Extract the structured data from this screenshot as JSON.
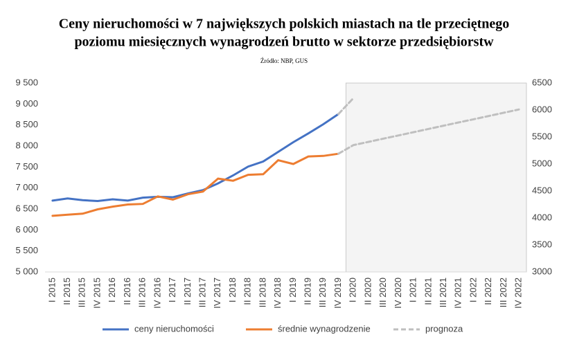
{
  "chart_data": {
    "type": "line",
    "title": [
      "Ceny nieruchomości w 7 największych polskich miastach na tle przeciętnego",
      "poziomu miesięcznych wynagrodzeń brutto w sektorze przedsiębiorstw"
    ],
    "subtitle": "Źródło: NBP, GUS",
    "categories": [
      "I 2015",
      "II 2015",
      "III 2015",
      "IV 2015",
      "I 2016",
      "II 2016",
      "III 2016",
      "IV 2016",
      "I 2017",
      "II 2017",
      "III 2017",
      "IV 2017",
      "I 2018",
      "II 2018",
      "III 2018",
      "IV 2018",
      "I 2019",
      "II 2019",
      "III 2019",
      "IV 2019",
      "I 2020",
      "II 2020",
      "III 2020",
      "IV 2020",
      "I 2021",
      "II 2021",
      "III 2021",
      "IV 2021",
      "I 2022",
      "II 2022",
      "III 2022",
      "IV 2022"
    ],
    "series": [
      {
        "name": "ceny nieruchomości",
        "color": "#4472c4",
        "axis": "y",
        "values": [
          6700,
          6750,
          6710,
          6690,
          6730,
          6700,
          6770,
          6790,
          6780,
          6870,
          6950,
          7110,
          7300,
          7510,
          7630,
          7860,
          8090,
          8300,
          8520,
          8760,
          null,
          null,
          null,
          null,
          null,
          null,
          null,
          null,
          null,
          null,
          null,
          null
        ]
      },
      {
        "name": "średnie wynagrodzenie",
        "color": "#ed7d31",
        "axis": "y2",
        "values": [
          4040,
          4060,
          4080,
          4160,
          4210,
          4250,
          4260,
          4400,
          4340,
          4440,
          4490,
          4730,
          4690,
          4800,
          4810,
          5070,
          5000,
          5140,
          5150,
          5190,
          null,
          null,
          null,
          null,
          null,
          null,
          null,
          null,
          null,
          null,
          null,
          null
        ]
      },
      {
        "name": "prognoza",
        "color": "#bfbfbf",
        "axis": "y2",
        "dashed": true,
        "values": [
          null,
          null,
          null,
          null,
          null,
          null,
          null,
          null,
          null,
          null,
          null,
          null,
          null,
          null,
          null,
          null,
          null,
          null,
          null,
          5190,
          5350,
          5410,
          5470,
          5530,
          5590,
          5650,
          5710,
          5770,
          5830,
          5890,
          5950,
          6010
        ]
      },
      {
        "color": "#bfbfbf",
        "axis": "y",
        "dashed": true,
        "values": [
          null,
          null,
          null,
          null,
          null,
          null,
          null,
          null,
          null,
          null,
          null,
          null,
          null,
          null,
          null,
          null,
          null,
          null,
          null,
          8760,
          9140,
          null,
          null,
          null,
          null,
          null,
          null,
          null,
          null,
          null,
          null,
          null
        ]
      }
    ],
    "ylim": [
      5000,
      9500
    ],
    "yticks": [
      {
        "value": 5000,
        "label": "5 000"
      },
      {
        "value": 5500,
        "label": "5 500"
      },
      {
        "value": 6000,
        "label": "6 000"
      },
      {
        "value": 6500,
        "label": "6 500"
      },
      {
        "value": 7000,
        "label": "7 000"
      },
      {
        "value": 7500,
        "label": "7 500"
      },
      {
        "value": 8000,
        "label": "8 000"
      },
      {
        "value": 8500,
        "label": "8 500"
      },
      {
        "value": 9000,
        "label": "9 000"
      },
      {
        "value": 9500,
        "label": "9 500"
      }
    ],
    "y2lim": [
      3000,
      6500
    ],
    "y2ticks": [
      3000,
      3500,
      4000,
      4500,
      5000,
      5500,
      6000,
      6500
    ],
    "grid": false
  }
}
